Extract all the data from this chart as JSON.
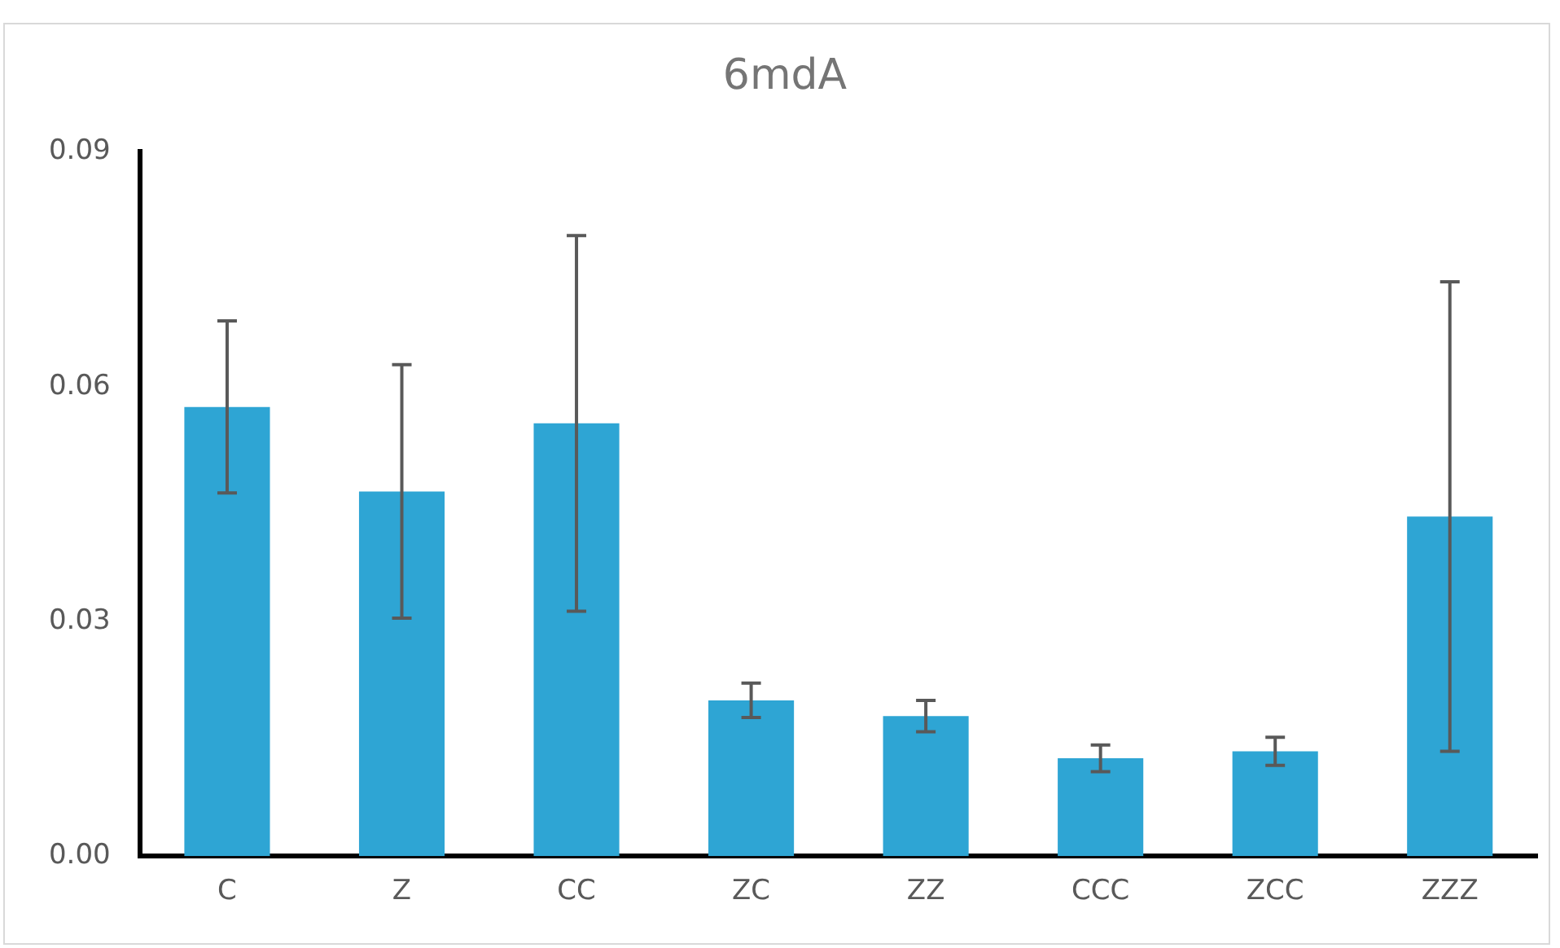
{
  "chart_data": {
    "type": "bar",
    "title": "6mdA",
    "categories": [
      "C",
      "Z",
      "CC",
      "ZC",
      "ZZ",
      "CCC",
      "ZCC",
      "ZZZ"
    ],
    "values": [
      0.0574,
      0.0466,
      0.0553,
      0.0199,
      0.0179,
      0.0125,
      0.0134,
      0.0434
    ],
    "errors": [
      0.011,
      0.0162,
      0.024,
      0.0022,
      0.002,
      0.0017,
      0.0018,
      0.03
    ],
    "color": "#2ea5d4",
    "ylim": [
      0,
      0.09
    ],
    "yticks": [
      {
        "value": 0,
        "label": "0.00"
      },
      {
        "value": 0.03,
        "label": "0.03"
      },
      {
        "value": 0.06,
        "label": "0.06"
      },
      {
        "value": 0.09,
        "label": "0.09"
      }
    ],
    "grid": false,
    "legend": false
  }
}
